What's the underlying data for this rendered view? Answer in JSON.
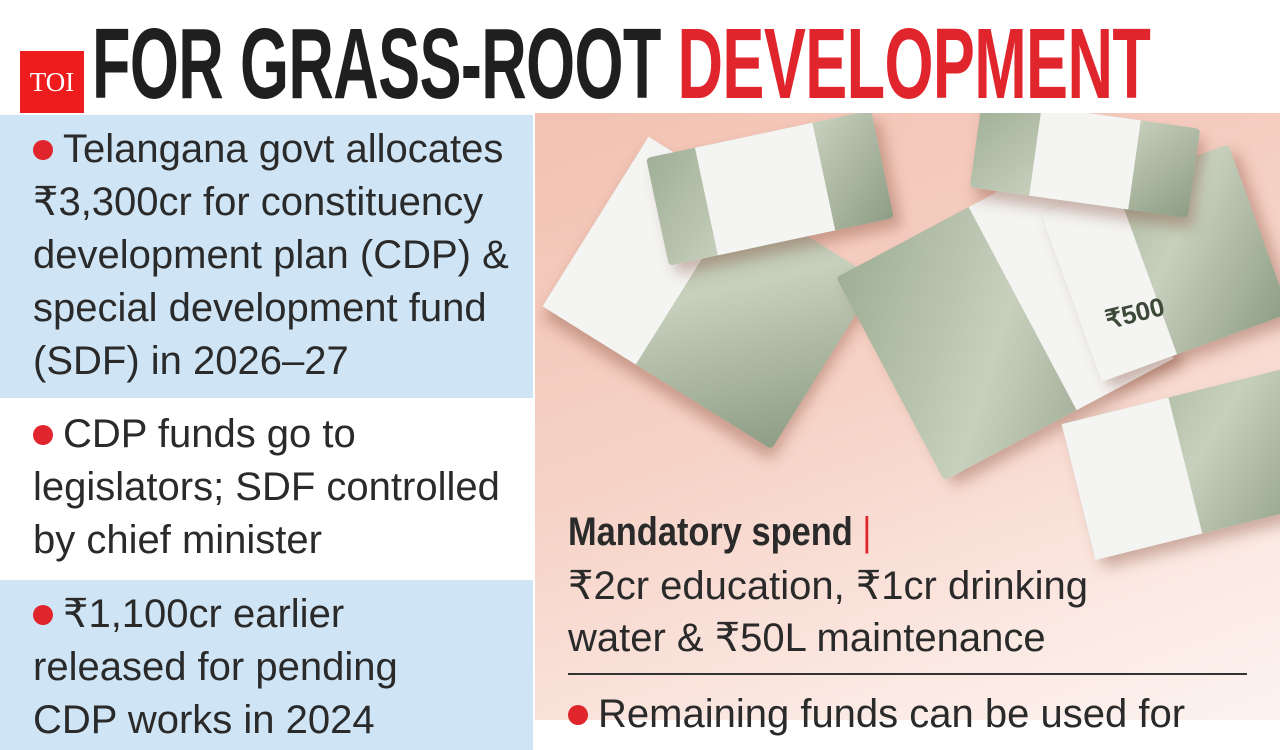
{
  "headline": {
    "part1": "FOR GRASS-ROOT",
    "part2": "DEVELOPMENT",
    "accent_color": "#e1252d"
  },
  "logo": "TOI",
  "left_panels": [
    {
      "lines": [
        "Telangana govt allocates",
        "₹3,300cr for constituency",
        "development plan (CDP) &",
        "special development fund",
        "(SDF) in 2026–27"
      ]
    },
    {
      "lines": [
        "CDP funds go to",
        "legislators; SDF controlled",
        "by chief minister"
      ]
    },
    {
      "lines": [
        "₹1,100cr earlier",
        "released for pending",
        "CDP works in 2024"
      ]
    }
  ],
  "photo": {
    "subject": "bundles of ₹500 notes",
    "note_label": "₹500"
  },
  "mandatory": {
    "heading": "Mandatory spend",
    "separator": "|",
    "lines": [
      "₹2cr education, ₹1cr drinking",
      "water & ₹50L maintenance"
    ]
  },
  "remaining": "Remaining funds can be used for"
}
